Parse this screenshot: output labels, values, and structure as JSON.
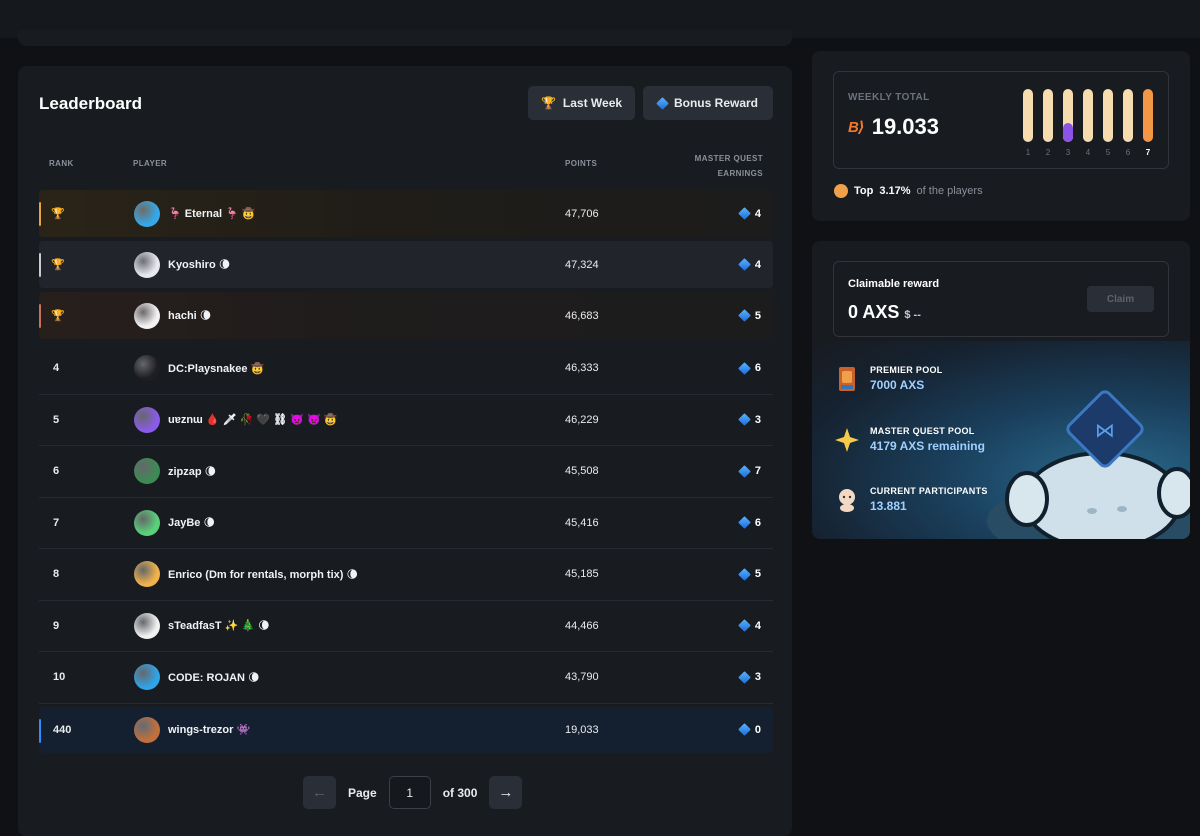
{
  "leaderboard": {
    "title": "Leaderboard",
    "buttons": {
      "last_week": "Last Week",
      "bonus_reward": "Bonus Reward"
    },
    "columns": {
      "rank": "RANK",
      "player": "PLAYER",
      "points": "POINTS",
      "earnings": "MASTER QUEST EARNINGS"
    },
    "rows": [
      {
        "rank": "🏆",
        "name": "🦩 Eternal 🦩 🤠",
        "points": "47,706",
        "earnings": "4"
      },
      {
        "rank": "🏆",
        "name": "Kyoshiro 🌘",
        "points": "47,324",
        "earnings": "4"
      },
      {
        "rank": "🏆",
        "name": "hachi 🌘",
        "points": "46,683",
        "earnings": "5"
      },
      {
        "rank": "4",
        "name": "DC:Playsnakee 🤠",
        "points": "46,333",
        "earnings": "6"
      },
      {
        "rank": "5",
        "name": "uɐznɯ 🩸 🗡 🥀 🖤 ⛓ 👿 👿 🤠",
        "points": "46,229",
        "earnings": "3"
      },
      {
        "rank": "6",
        "name": "zipzap 🌘",
        "points": "45,508",
        "earnings": "7"
      },
      {
        "rank": "7",
        "name": "JayBe 🌘",
        "points": "45,416",
        "earnings": "6"
      },
      {
        "rank": "8",
        "name": "Enrico (Dm for rentals, morph tix) 🌘",
        "points": "45,185",
        "earnings": "5"
      },
      {
        "rank": "9",
        "name": "sTeadfasT ✨ 🎄 🌘",
        "points": "44,466",
        "earnings": "4"
      },
      {
        "rank": "10",
        "name": "CODE: ROJAN 🌘",
        "points": "43,790",
        "earnings": "3"
      },
      {
        "rank": "440",
        "name": "wings-trezor 👾",
        "points": "19,033",
        "earnings": "0"
      }
    ],
    "pagination": {
      "page_label": "Page",
      "current_page": "1",
      "of_label": "of 300"
    }
  },
  "weekly": {
    "label": "WEEKLY TOTAL",
    "bp_icon": "B⟩",
    "total": "19.033",
    "days": [
      "1",
      "2",
      "3",
      "4",
      "5",
      "6",
      "7"
    ],
    "current_day": 7,
    "day3_progress_fraction": 0.35,
    "top_prefix": "Top",
    "top_pct": "3.17%",
    "top_suffix": "of the players",
    "colors": {
      "bar": "#f7dcaf",
      "bar_current": "#f39646",
      "progress": "#8b53e8"
    }
  },
  "rewards": {
    "claimable_title": "Claimable reward",
    "claimable_amount": "0 AXS",
    "claimable_usd": "$ --",
    "claim_button": "Claim",
    "pools": [
      {
        "label": "PREMIER POOL",
        "value": "7000  AXS",
        "icon": "trophy-icon"
      },
      {
        "label": "MASTER QUEST POOL",
        "value": "4179  AXS remaining",
        "icon": "sparkle-icon"
      },
      {
        "label": "CURRENT PARTICIPANTS",
        "value": "13.881",
        "icon": "axie-face-icon"
      }
    ]
  },
  "avatar_colors": [
    "#36a7e8",
    "#e8e8f0",
    "#f3f3f6",
    "#1d1d22",
    "#8a5be8",
    "#3e8a55",
    "#5ad07a",
    "#f0b24a",
    "#f1f1f1",
    "#2fa4e6",
    "#c0703c"
  ]
}
